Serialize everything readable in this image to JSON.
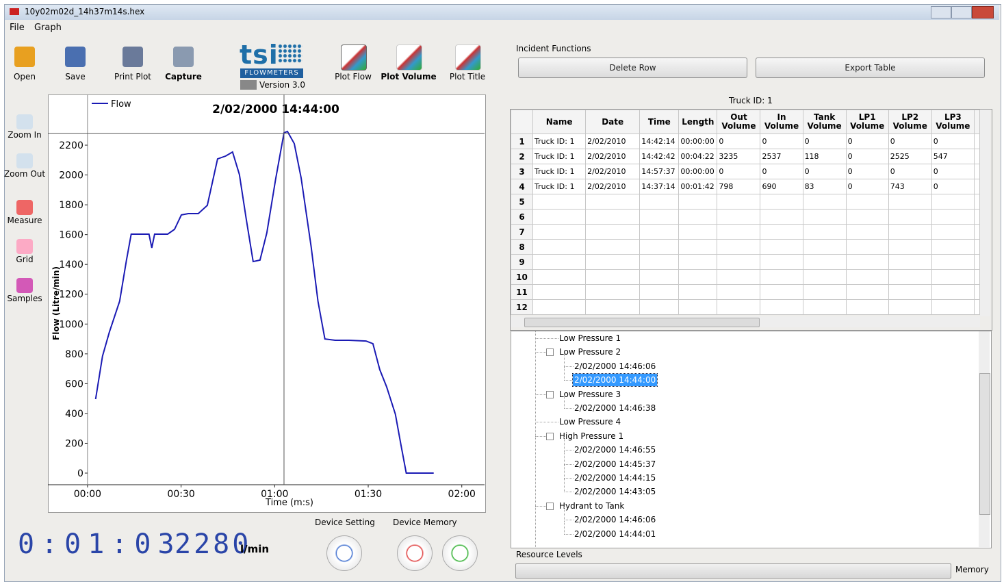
{
  "window": {
    "title": "10y02m02d_14h37m14s.hex"
  },
  "menu": [
    "File",
    "Graph"
  ],
  "toolbar": [
    "Open",
    "Save",
    "Print Plot",
    "Capture"
  ],
  "logo": {
    "brand": "tsi",
    "sub": "FLOWMETERS",
    "version": "Version 3.0"
  },
  "plot_buttons": [
    "Plot Flow",
    "Plot Volume",
    "Plot Title"
  ],
  "side_tools": [
    "Zoom In",
    "Zoom Out",
    "Measure",
    "Grid",
    "Samples"
  ],
  "plot": {
    "type": "line",
    "title": "2/02/2000 14:44:00",
    "x_label": "Time (m:s)",
    "y_label": "Flow (Litre/min)",
    "series": [
      {
        "name": "Flow",
        "color": "#1a1ab4",
        "x": [
          2.6,
          4.8,
          7.0,
          10.3,
          12.5,
          14.0,
          18.0,
          19.7,
          20.6,
          21.5,
          25.7,
          27.9,
          30.1,
          32.3,
          35.5,
          38.4,
          41.7,
          44.3,
          46.5,
          48.7,
          50.9,
          53.1,
          55.3,
          57.5,
          60.3,
          63.0,
          64.1,
          66.3,
          68.5,
          71.7,
          73.9,
          76.1,
          79.4,
          83.8,
          89.3,
          91.5,
          93.7,
          95.9,
          98.7,
          100.5,
          102.2,
          111.0
        ],
        "values": [
          496,
          785,
          946,
          1153,
          1429,
          1603,
          1603,
          1603,
          1511,
          1603,
          1603,
          1635,
          1732,
          1741,
          1741,
          1796,
          2108,
          2127,
          2154,
          2003,
          1704,
          1419,
          1429,
          1612,
          1971,
          2283,
          2292,
          2210,
          1980,
          1520,
          1153,
          900,
          891,
          891,
          886,
          868,
          694,
          579,
          395,
          188,
          0,
          0
        ]
      }
    ],
    "xlim": [
      -12.7,
      127.3
    ],
    "ylim": [
      -78,
      2540
    ],
    "xticks": [
      {
        "value": 0,
        "label": "00:00"
      },
      {
        "value": 30,
        "label": "00:30"
      },
      {
        "value": 60,
        "label": "01:00"
      },
      {
        "value": 90,
        "label": "01:30"
      },
      {
        "value": 120,
        "label": "02:00"
      }
    ],
    "yticks": [
      0,
      200,
      400,
      600,
      800,
      1000,
      1200,
      1400,
      1600,
      1800,
      2000,
      2200
    ],
    "cursor": {
      "x": 63,
      "y": 2280
    }
  },
  "readout": {
    "time": "0:01:03",
    "flow": "2280",
    "unit": "l/min"
  },
  "device": {
    "setting": "Device Setting",
    "memory": "Device Memory"
  },
  "incident": {
    "title": "Incident Functions",
    "buttons": [
      "Delete Row",
      "Export Table"
    ]
  },
  "table": {
    "caption": "Truck ID: 1",
    "columns": [
      "Name",
      "Date",
      "Time",
      "Length",
      "Out Volume",
      "In Volume",
      "Tank Volume",
      "LP1 Volume",
      "LP2 Volume",
      "LP3 Volume"
    ],
    "row_numbers": [
      1,
      2,
      3,
      4,
      5,
      6,
      7,
      8,
      9,
      10,
      11,
      12
    ],
    "rows": [
      [
        "Truck ID: 1",
        "2/02/2010",
        "14:42:14",
        "00:00:00",
        "0",
        "0",
        "0",
        "0",
        "0",
        "0"
      ],
      [
        "Truck ID: 1",
        "2/02/2010",
        "14:42:42",
        "00:04:22",
        "3235",
        "2537",
        "118",
        "0",
        "2525",
        "547"
      ],
      [
        "Truck ID: 1",
        "2/02/2010",
        "14:57:37",
        "00:00:00",
        "0",
        "0",
        "0",
        "0",
        "0",
        "0"
      ],
      [
        "Truck ID: 1",
        "2/02/2010",
        "14:37:14",
        "00:01:42",
        "798",
        "690",
        "83",
        "0",
        "743",
        "0"
      ]
    ]
  },
  "tree": [
    {
      "label": "Low Pressure 1"
    },
    {
      "label": "Low Pressure 2",
      "children": [
        {
          "label": "2/02/2000 14:46:06"
        },
        {
          "label": "2/02/2000 14:44:00",
          "selected": true
        }
      ]
    },
    {
      "label": "Low Pressure 3",
      "children": [
        {
          "label": "2/02/2000 14:46:38"
        }
      ]
    },
    {
      "label": "Low Pressure 4"
    },
    {
      "label": "High Pressure 1",
      "children": [
        {
          "label": "2/02/2000 14:46:55"
        },
        {
          "label": "2/02/2000 14:45:37"
        },
        {
          "label": "2/02/2000 14:44:15"
        },
        {
          "label": "2/02/2000 14:43:05"
        }
      ]
    },
    {
      "label": "Hydrant to Tank",
      "children": [
        {
          "label": "2/02/2000 14:46:06"
        },
        {
          "label": "2/02/2000 14:44:01"
        }
      ]
    }
  ],
  "resources": {
    "title": "Resource Levels",
    "memory": "Memory"
  }
}
